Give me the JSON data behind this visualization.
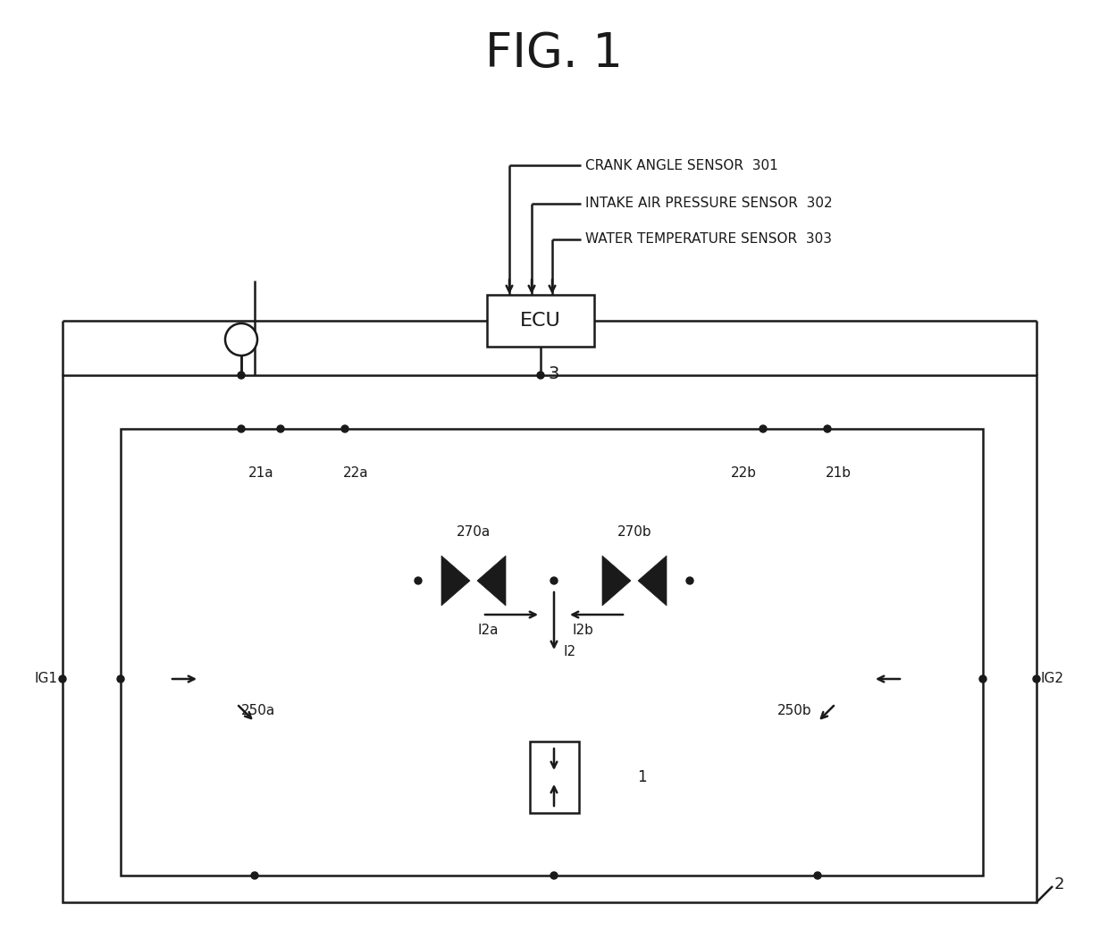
{
  "title": "FIG. 1",
  "bg": "#ffffff",
  "lc": "#1a1a1a",
  "sensor1": "CRANK ANGLE SENSOR  301",
  "sensor2": "INTAKE AIR PRESSURE SENSOR  302",
  "sensor3": "WATER TEMPERATURE SENSOR  303",
  "ecu_label": "ECU",
  "ecu_num": "3",
  "ig1": "IG1",
  "ig2": "IG2",
  "i2a": "I2a",
  "i2b": "I2b",
  "i2": "I2",
  "lbl_21a": "21a",
  "lbl_22a": "22a",
  "lbl_22b": "22b",
  "lbl_21b": "21b",
  "lbl_250a": "250a",
  "lbl_250b": "250b",
  "lbl_270a": "270a",
  "lbl_270b": "270b",
  "lbl_1": "1",
  "lbl_2": "2"
}
